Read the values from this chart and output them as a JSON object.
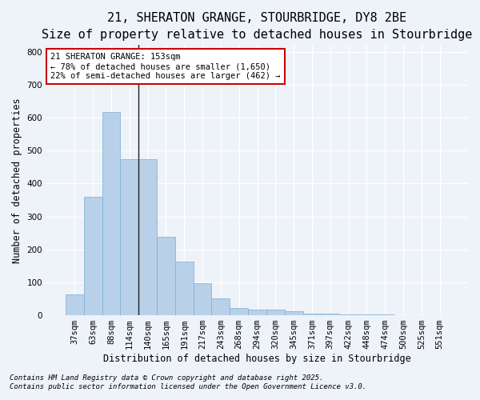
{
  "title_line1": "21, SHERATON GRANGE, STOURBRIDGE, DY8 2BE",
  "title_line2": "Size of property relative to detached houses in Stourbridge",
  "xlabel": "Distribution of detached houses by size in Stourbridge",
  "ylabel": "Number of detached properties",
  "categories": [
    "37sqm",
    "63sqm",
    "88sqm",
    "114sqm",
    "140sqm",
    "165sqm",
    "191sqm",
    "217sqm",
    "243sqm",
    "268sqm",
    "294sqm",
    "320sqm",
    "345sqm",
    "371sqm",
    "397sqm",
    "422sqm",
    "448sqm",
    "474sqm",
    "500sqm",
    "525sqm",
    "551sqm"
  ],
  "values": [
    63,
    360,
    617,
    473,
    473,
    237,
    163,
    98,
    50,
    22,
    18,
    18,
    13,
    5,
    5,
    3,
    2,
    2,
    1,
    1,
    1
  ],
  "bar_color": "#b8d0e8",
  "bar_edge_color": "#7aafd4",
  "annotation_title": "21 SHERATON GRANGE: 153sqm",
  "annotation_line2": "← 78% of detached houses are smaller (1,650)",
  "annotation_line3": "22% of semi-detached houses are larger (462) →",
  "annotation_box_color": "#ffffff",
  "annotation_box_edge": "#cc0000",
  "ylim": [
    0,
    820
  ],
  "yticks": [
    0,
    100,
    200,
    300,
    400,
    500,
    600,
    700,
    800
  ],
  "footnote_line1": "Contains HM Land Registry data © Crown copyright and database right 2025.",
  "footnote_line2": "Contains public sector information licensed under the Open Government Licence v3.0.",
  "background_color": "#eef2f9",
  "grid_color": "#ffffff",
  "title_fontsize": 11,
  "subtitle_fontsize": 9.5,
  "axis_label_fontsize": 8.5,
  "tick_fontsize": 7.5,
  "annotation_fontsize": 7.5,
  "footnote_fontsize": 6.5
}
